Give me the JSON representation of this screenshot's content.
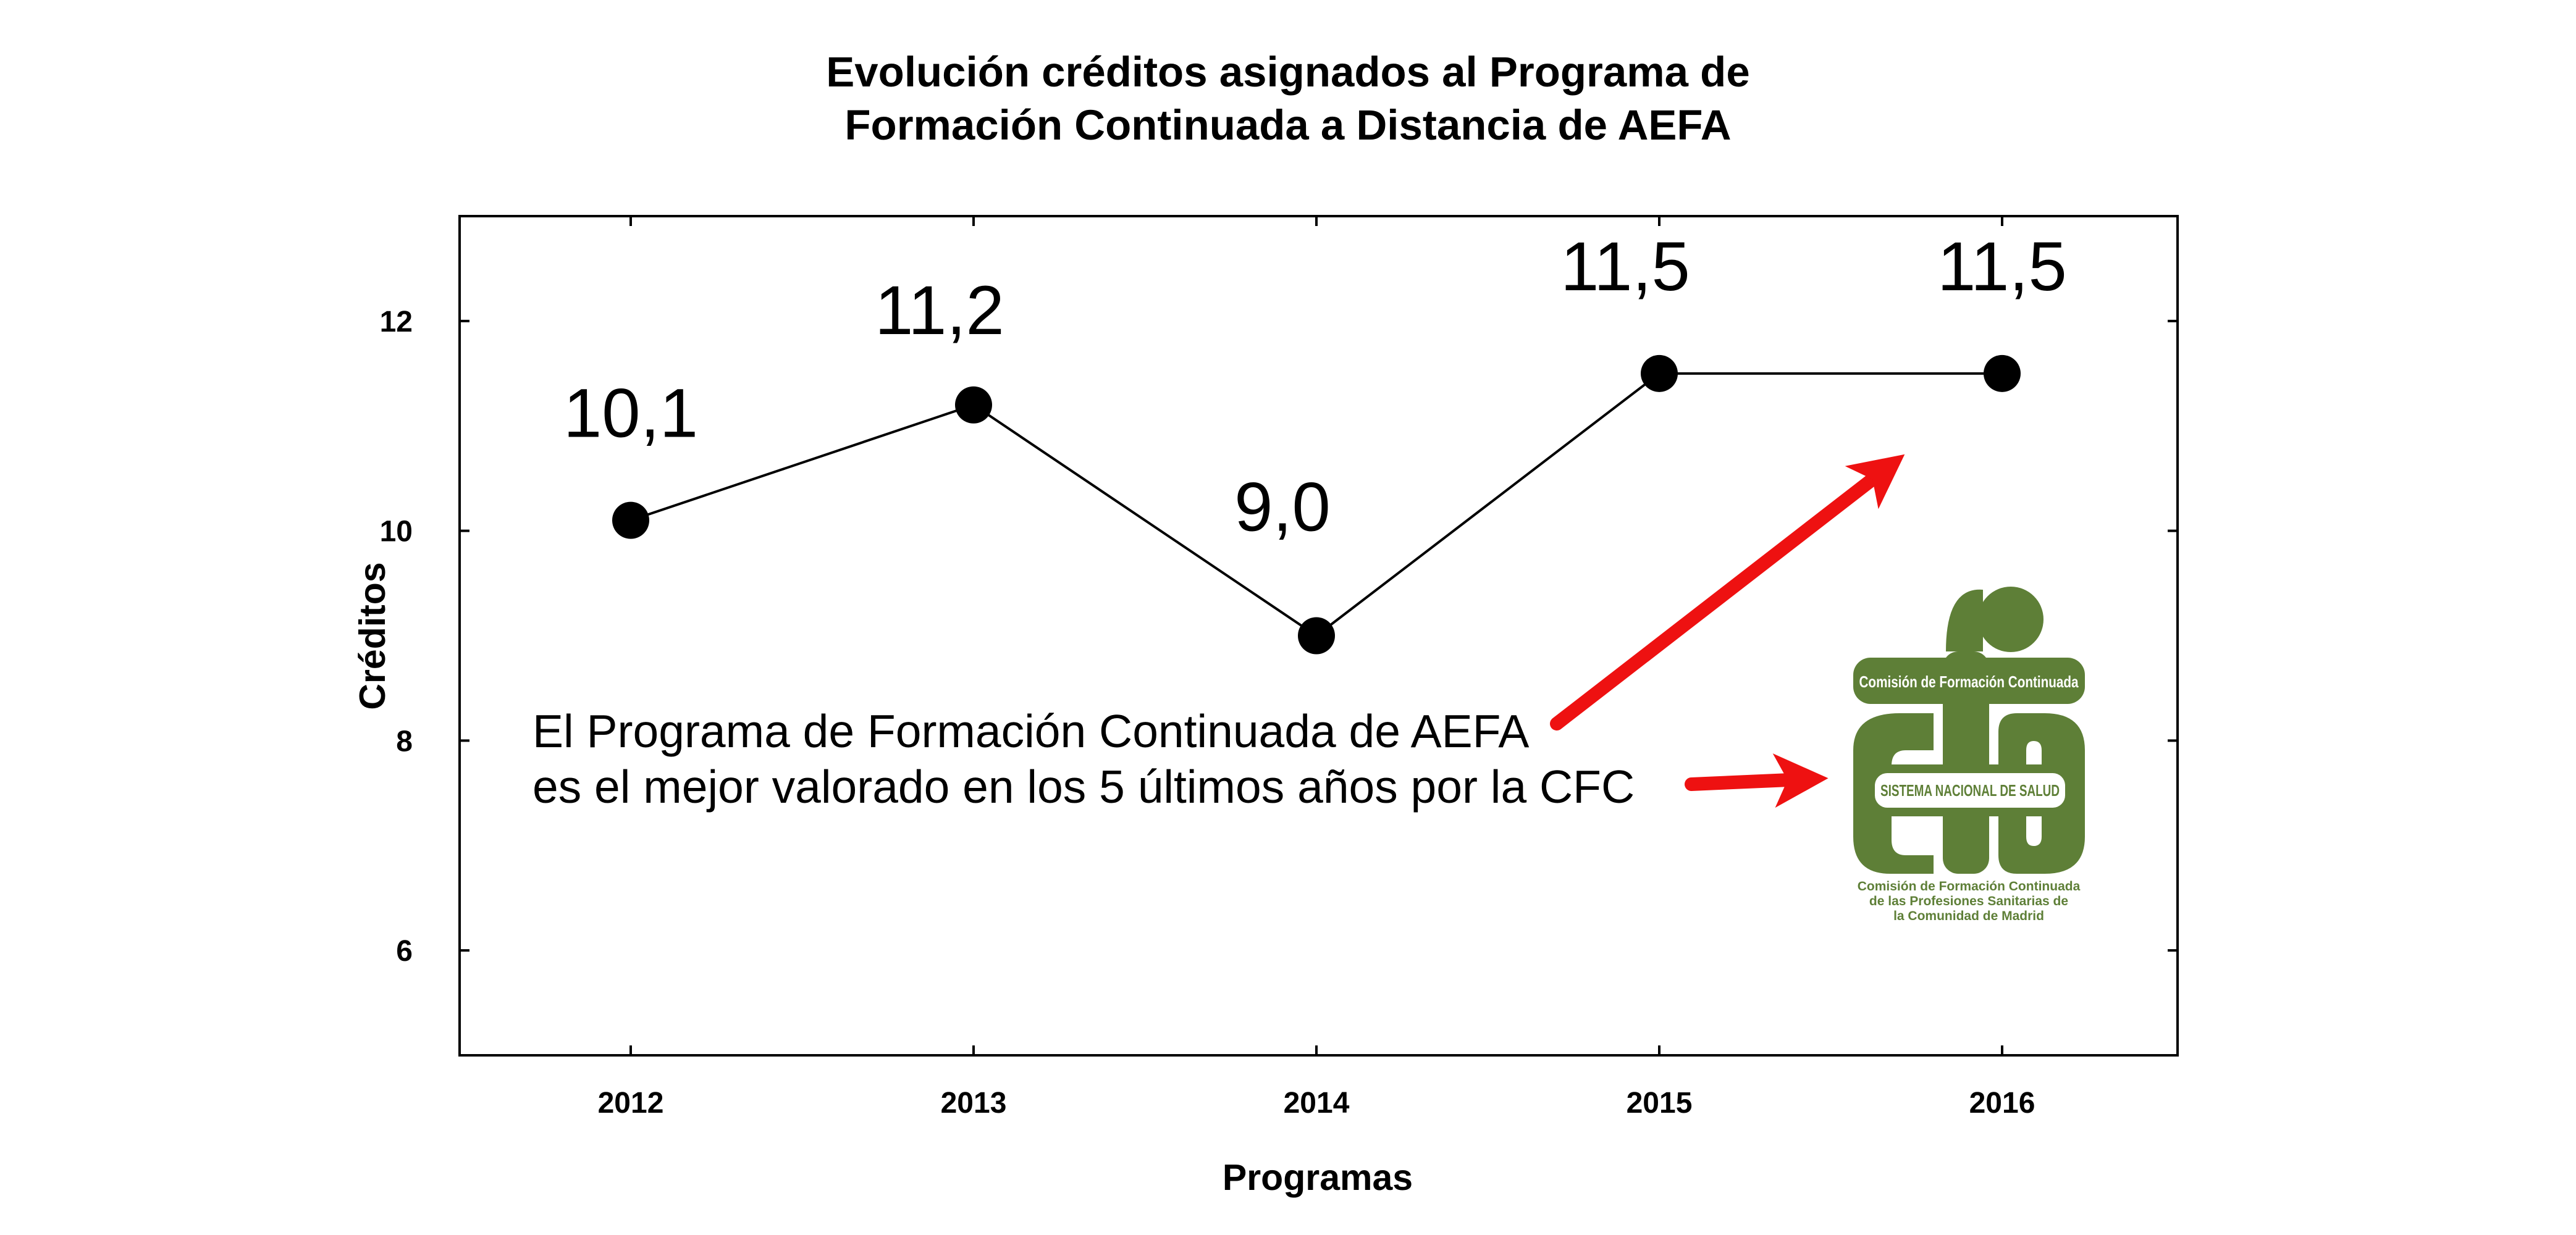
{
  "chart_data": {
    "type": "line",
    "title": [
      "Evolución créditos asignados al Programa de",
      "Formación Continuada a Distancia de AEFA"
    ],
    "xlabel": "Programas",
    "ylabel": "Créditos",
    "categories": [
      "2012",
      "2013",
      "2014",
      "2015",
      "2016"
    ],
    "values": [
      10.1,
      11.2,
      9.0,
      11.5,
      11.5
    ],
    "data_labels": [
      "10,1",
      "11,2",
      "9,0",
      "11,5",
      "11,5"
    ],
    "data_label_colors": [
      "#000000",
      "#000000",
      "#000000",
      "#000000",
      "#1010e0"
    ],
    "ylim": [
      5,
      13
    ],
    "yticks": [
      6,
      8,
      10,
      12
    ],
    "grid": false,
    "legend": "none",
    "marker_color": "#000000",
    "line_color": "#000000"
  },
  "annotation": {
    "lines": [
      "El Programa de Formación Continuada de AEFA",
      "es el mejor valorado en los 5 últimos años por la CFC"
    ],
    "arrow_color": "#ee1111"
  },
  "logo": {
    "color": "#5e7f37",
    "top_band": "Comisión de Formación Continuada",
    "middle_band": "SISTEMA NACIONAL DE SALUD",
    "caption": [
      "Comisión de Formación Continuada",
      "de las Profesiones Sanitarias de",
      "la Comunidad de Madrid"
    ]
  }
}
